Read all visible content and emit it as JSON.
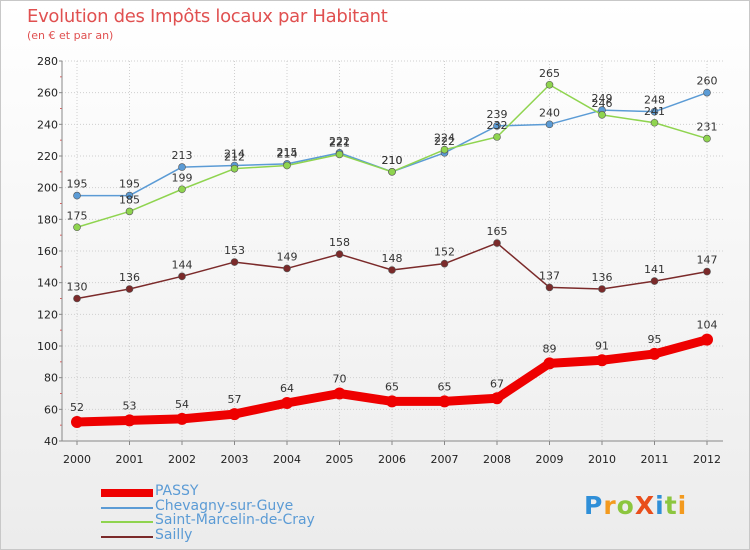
{
  "title": "Evolution des Impôts locaux par Habitant",
  "subtitle": "(en € et par an)",
  "logo": {
    "text": "ProXiti",
    "letters": [
      "P",
      "r",
      "o",
      "X",
      "i",
      "t",
      "i"
    ],
    "letter_colors": [
      "#2f8fd8",
      "#f39a1e",
      "#8cc63f",
      "#e94e1b",
      "#2f8fd8",
      "#8cc63f",
      "#f39a1e"
    ]
  },
  "chart_data": {
    "type": "line",
    "title": "Evolution des Impôts locaux par Habitant",
    "subtitle": "(en € et par an)",
    "xlabel": "",
    "ylabel": "",
    "x": [
      "2000",
      "2001",
      "2002",
      "2003",
      "2004",
      "2005",
      "2006",
      "2007",
      "2008",
      "2009",
      "2010",
      "2011",
      "2012"
    ],
    "ylim": [
      40,
      280
    ],
    "yticks": [
      "40",
      "60",
      "80",
      "100",
      "120",
      "140",
      "160",
      "180",
      "200",
      "220",
      "240",
      "260",
      "280"
    ],
    "grid": true,
    "legend_position": "bottom-left",
    "series": [
      {
        "name": "Chevagny-sur-Guye",
        "color": "#5b9bd5",
        "values": [
          195,
          195,
          213,
          214,
          215,
          222,
          210,
          222,
          239,
          240,
          249,
          248,
          260
        ],
        "labels": [
          "195",
          "195",
          "213",
          "214",
          "215",
          "222",
          "210",
          "222",
          "239",
          "240",
          "249",
          "248",
          "260"
        ]
      },
      {
        "name": "Saint-Marcelin-de-Cray",
        "color": "#8fd44f",
        "values": [
          175,
          185,
          199,
          212,
          214,
          221,
          210,
          224,
          232,
          265,
          246,
          241,
          231
        ],
        "labels": [
          "175",
          "185",
          "199",
          "212",
          "214",
          "221",
          "210",
          "224",
          "232",
          "265",
          "246",
          "241",
          "231"
        ]
      },
      {
        "name": "Sailly",
        "color": "#7b2a2a",
        "values": [
          130,
          136,
          144,
          153,
          149,
          158,
          148,
          152,
          165,
          137,
          136,
          141,
          147
        ],
        "labels": [
          "130",
          "136",
          "144",
          "153",
          "149",
          "158",
          "148",
          "152",
          "165",
          "137",
          "136",
          "141",
          "147"
        ]
      },
      {
        "name": "PASSY",
        "color": "#ee0000",
        "values": [
          52,
          53,
          54,
          57,
          64,
          70,
          65,
          65,
          67,
          89,
          91,
          95,
          104
        ],
        "labels": [
          "52",
          "53",
          "54",
          "57",
          "64",
          "70",
          "65",
          "65",
          "67",
          "89",
          "91",
          "95",
          "104"
        ]
      }
    ]
  },
  "legend": [
    {
      "name": "PASSY",
      "color": "#ee0000",
      "text_color": "#5b9bd5"
    },
    {
      "name": "Chevagny-sur-Guye",
      "color": "#5b9bd5",
      "text_color": "#5b9bd5"
    },
    {
      "name": "Saint-Marcelin-de-Cray",
      "color": "#8fd44f",
      "text_color": "#5b9bd5"
    },
    {
      "name": "Sailly",
      "color": "#7b2a2a",
      "text_color": "#5b9bd5"
    }
  ]
}
